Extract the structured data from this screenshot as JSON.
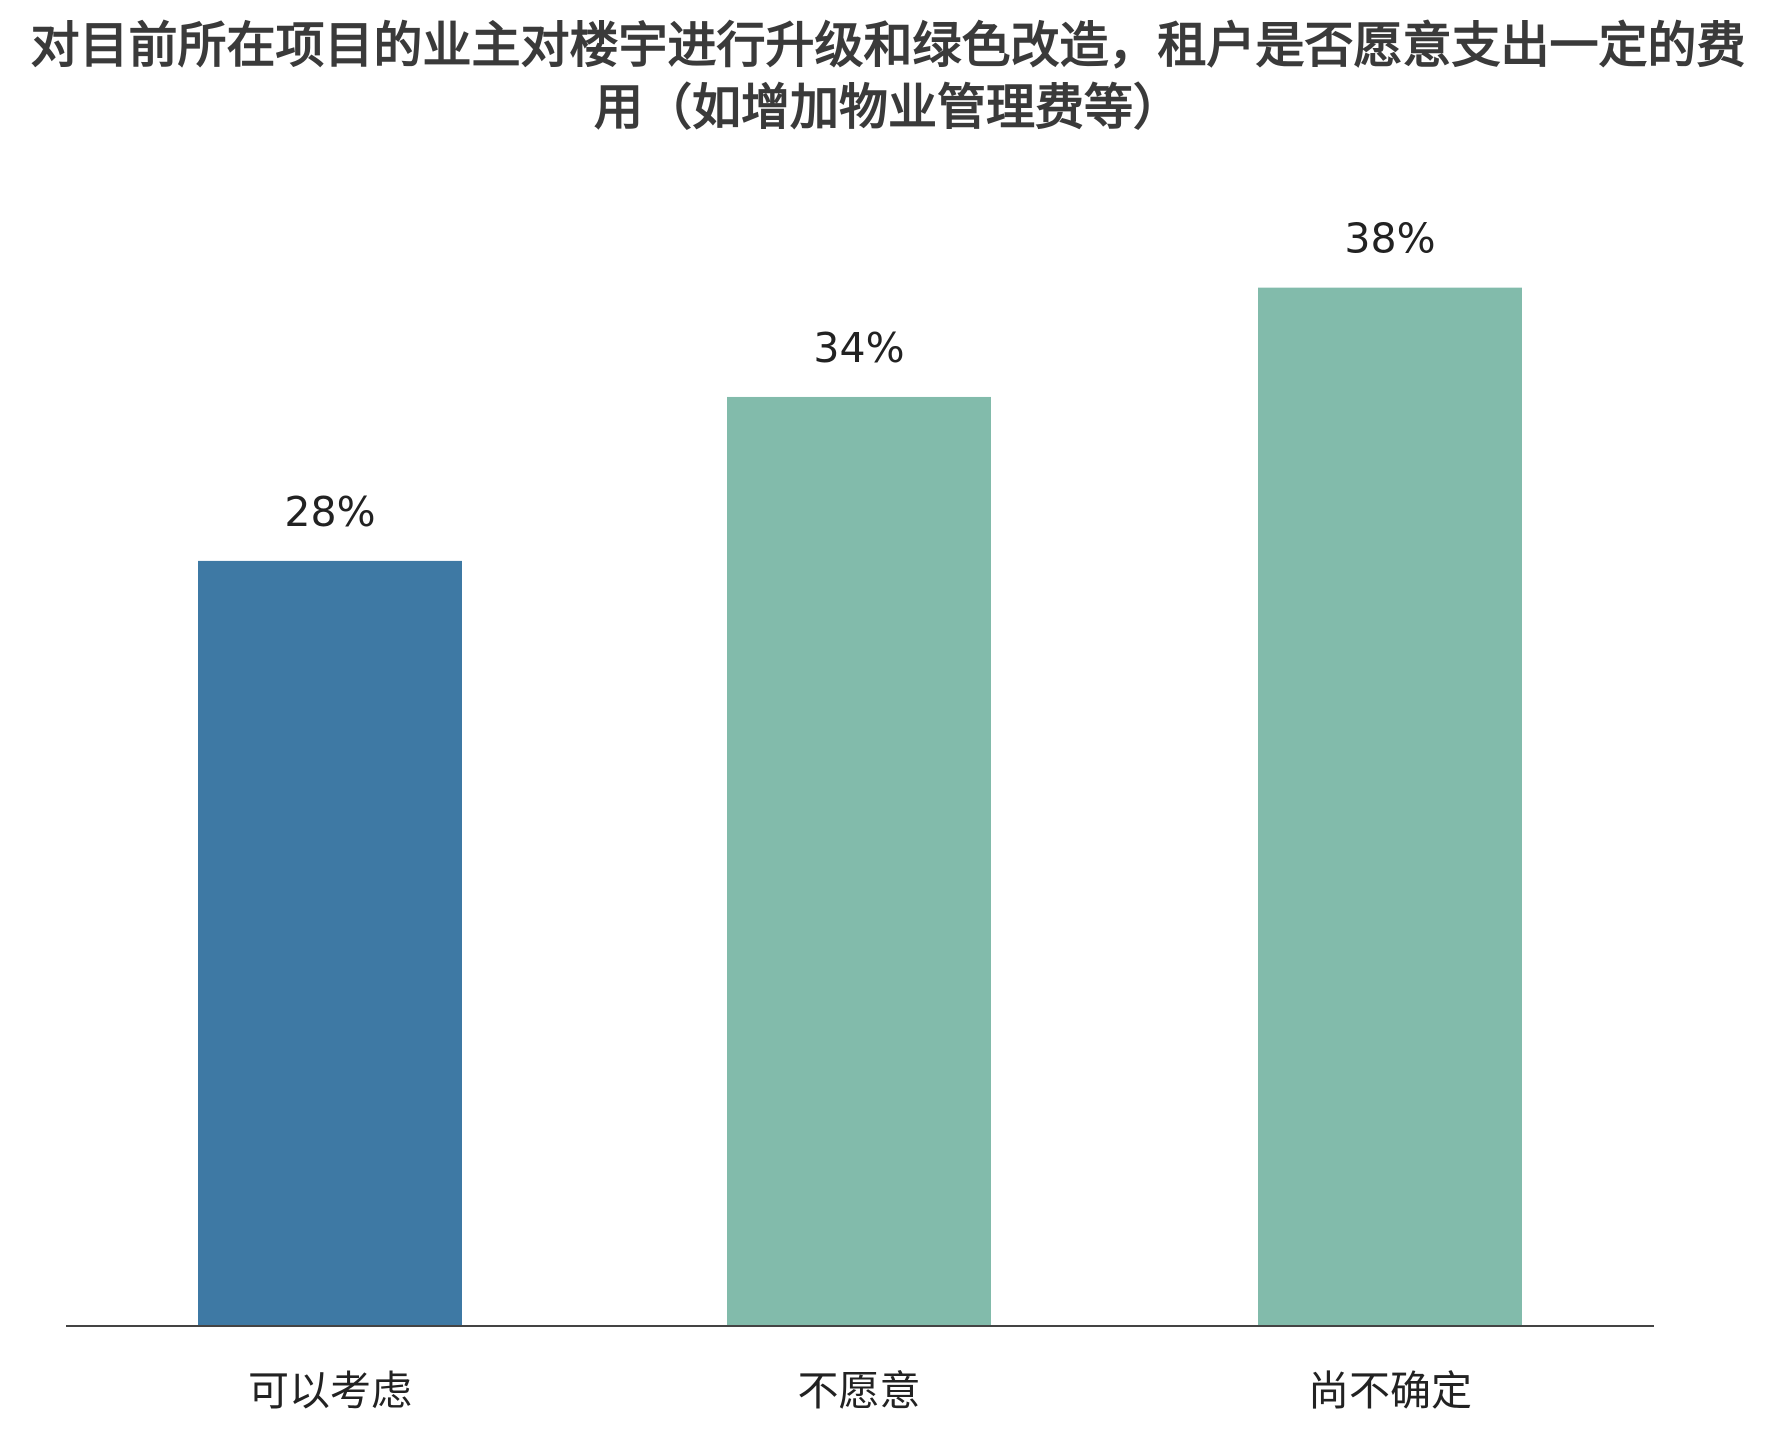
{
  "chart_data": {
    "type": "bar",
    "title": "对目前所在项目的业主对楼宇进行升级和绿色改造，租户是否愿意支出一定的费用（如增加物业管理费等）",
    "categories": [
      "可以考虑",
      "不愿意",
      "尚不确定"
    ],
    "values": [
      28,
      34,
      38
    ],
    "value_labels": [
      "28%",
      "34%",
      "38%"
    ],
    "colors": [
      "#3e79a4",
      "#82bbab",
      "#82bbab"
    ],
    "ylim": [
      0,
      40
    ]
  }
}
